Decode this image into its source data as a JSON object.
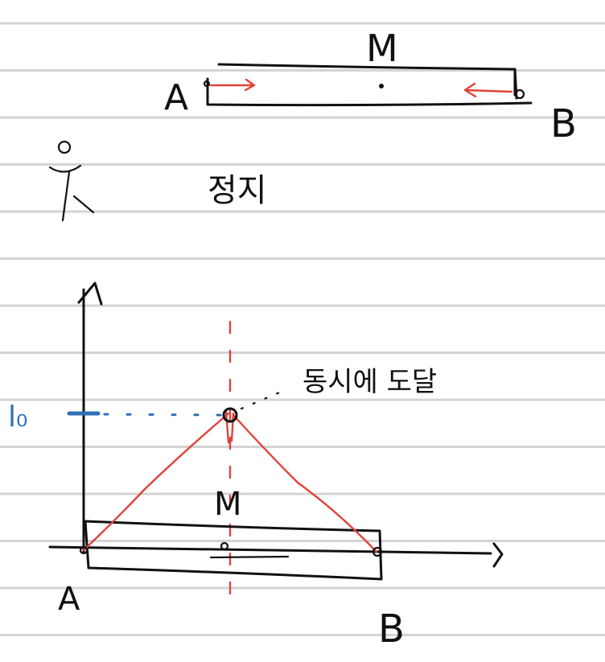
{
  "colors": {
    "ruled_line": "#d4d4d4",
    "ink": "#111111",
    "red": "#e0433a",
    "blue": "#2f6fb5"
  },
  "top_figure": {
    "center_label": "M",
    "left_label": "A",
    "right_label": "B"
  },
  "note": {
    "icon": "stick-figure-icon",
    "text": "정지"
  },
  "graph": {
    "y_mark_label": "l₀",
    "center_label": "M",
    "left_label": "A",
    "right_label": "B",
    "annotation": "동시에 도달"
  }
}
